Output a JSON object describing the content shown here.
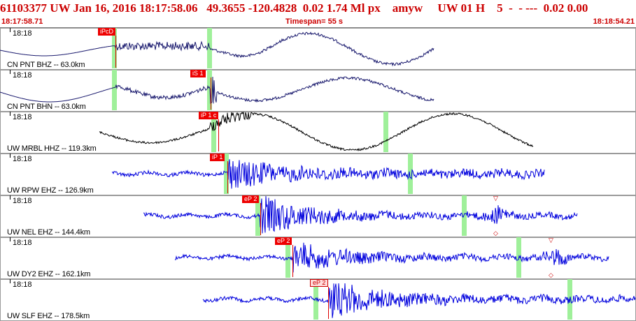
{
  "header": {
    "title_line": "61103377 UW Jan 16, 2016 18:17:58.06   49.3655 -120.4828  0.02 1.74 Ml px    amyw     UW 01 H    5  -  - ---  0.02 0.00",
    "time_start": "18:17:58.71",
    "timespan": "Timespan=  55 s",
    "time_end": "18:18:54.21"
  },
  "colors": {
    "header_text": "#cc0000",
    "broadband_trace": "#1a1a6e",
    "short_period_trace": "#0000dd",
    "strong_motion_trace": "#000000",
    "marker": "#9ff09a",
    "pick": "#ee0000"
  },
  "panels": [
    {
      "time": "18:18",
      "station": "CN PNT BHZ -- 63.0km",
      "pick": "iPcD",
      "pick_style": "filled"
    },
    {
      "time": "18:18",
      "station": "CN PNT BHN -- 63.0km",
      "pick": "iS 1",
      "pick_style": "filled"
    },
    {
      "time": "18:18",
      "station": "UW MRBL HHZ -- 119.3km",
      "pick": "iP 1 c",
      "pick_style": "filled"
    },
    {
      "time": "18:18",
      "station": "UW RPW EHZ -- 126.9km",
      "pick": "iP 1",
      "pick_style": "filled"
    },
    {
      "time": "18:18",
      "station": "UW NEL EHZ -- 144.4km",
      "pick": "eP 2",
      "pick_style": "filled"
    },
    {
      "time": "18:18",
      "station": "UW DY2 EHZ -- 162.1km",
      "pick": "eP 2",
      "pick_style": "filled"
    },
    {
      "time": "18:18",
      "station": "UW SLF EHZ -- 178.5km",
      "pick": "eP 2",
      "pick_style": "outline"
    }
  ]
}
